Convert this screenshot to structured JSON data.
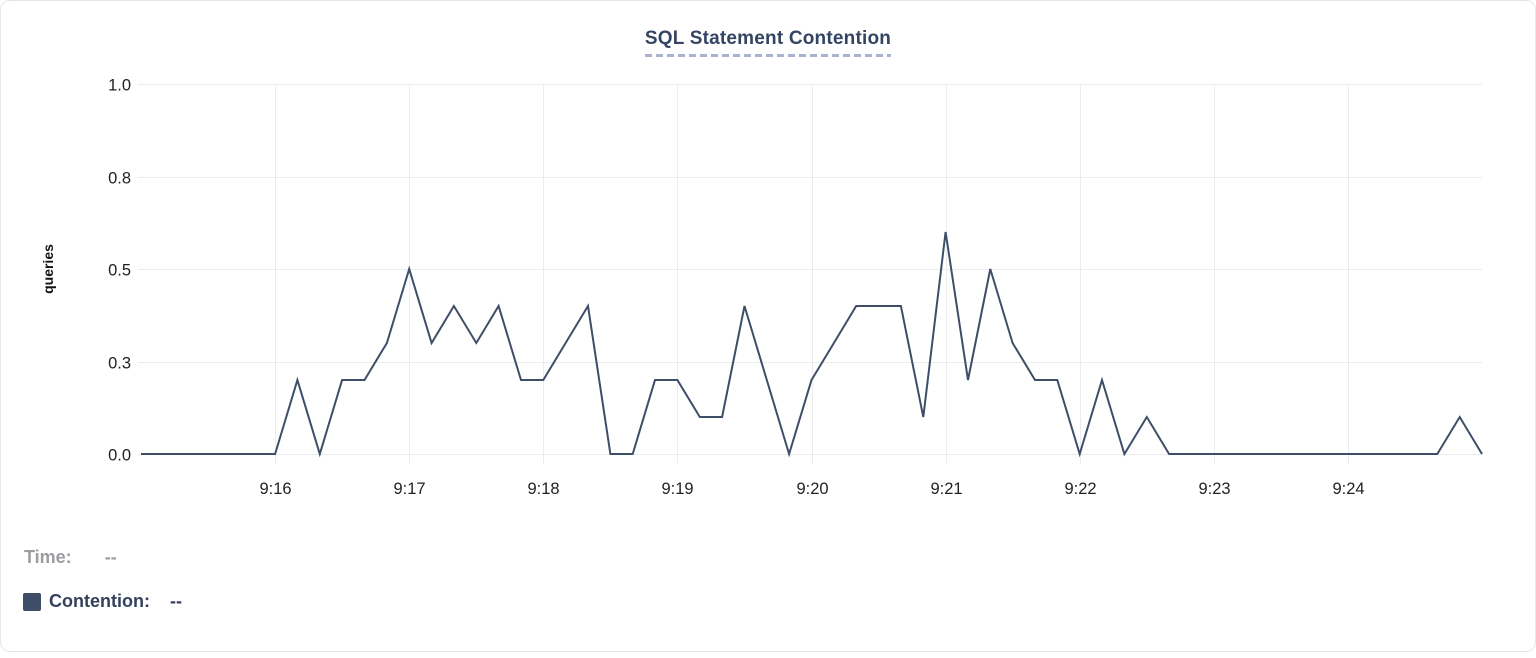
{
  "colors": {
    "line": "#3e4e68",
    "grid": "#ebecee",
    "tick_text": "#1e2023",
    "axis_label_text": "#111214",
    "title": "#344563",
    "title_underline": "#a9b2d1",
    "legend_gray": "#9b9da1",
    "legend_navy": "#33415c",
    "card_border": "#e4e6e9",
    "background": "#ffffff"
  },
  "legend": {
    "time_label": "Time:",
    "time_value": "--",
    "contention_label": "Contention:",
    "contention_value": "--",
    "swatch_color": "#3e4e68"
  },
  "chart_data": {
    "type": "line",
    "title": "SQL Statement Contention",
    "xlabel": "",
    "ylabel": "queries",
    "ylim": [
      0,
      1
    ],
    "grid": true,
    "legend_position": "bottom-left",
    "markers": false,
    "interval_seconds": 10,
    "x_range": [
      "9:15:00",
      "9:25:00"
    ],
    "y_ticks": [
      {
        "value": 0.0,
        "label": "0.0"
      },
      {
        "value": 0.25,
        "label": "0.3"
      },
      {
        "value": 0.5,
        "label": "0.5"
      },
      {
        "value": 0.75,
        "label": "0.8"
      },
      {
        "value": 1.0,
        "label": "1.0"
      }
    ],
    "x_tick_labels": [
      "9:16",
      "9:17",
      "9:18",
      "9:19",
      "9:20",
      "9:21",
      "9:22",
      "9:23",
      "9:24"
    ],
    "x": [
      "9:15:00",
      "9:15:10",
      "9:15:20",
      "9:15:30",
      "9:15:40",
      "9:15:50",
      "9:16:00",
      "9:16:10",
      "9:16:20",
      "9:16:30",
      "9:16:40",
      "9:16:50",
      "9:17:00",
      "9:17:10",
      "9:17:20",
      "9:17:30",
      "9:17:40",
      "9:17:50",
      "9:18:00",
      "9:18:10",
      "9:18:20",
      "9:18:30",
      "9:18:40",
      "9:18:50",
      "9:19:00",
      "9:19:10",
      "9:19:20",
      "9:19:30",
      "9:19:40",
      "9:19:50",
      "9:20:00",
      "9:20:10",
      "9:20:20",
      "9:20:30",
      "9:20:40",
      "9:20:50",
      "9:21:00",
      "9:21:10",
      "9:21:20",
      "9:21:30",
      "9:21:40",
      "9:21:50",
      "9:22:00",
      "9:22:10",
      "9:22:20",
      "9:22:30",
      "9:22:40",
      "9:22:50",
      "9:23:00",
      "9:23:10",
      "9:23:20",
      "9:23:30",
      "9:23:40",
      "9:23:50",
      "9:24:00",
      "9:24:10",
      "9:24:20",
      "9:24:30",
      "9:24:40",
      "9:24:50",
      "9:25:00"
    ],
    "series": [
      {
        "name": "Contention",
        "color": "#3e4e68",
        "values": [
          0,
          0,
          0,
          0,
          0,
          0,
          0,
          0.2,
          0,
          0.2,
          0.2,
          0.3,
          0.5,
          0.3,
          0.4,
          0.3,
          0.4,
          0.2,
          0.2,
          0.3,
          0.4,
          0,
          0,
          0.2,
          0.2,
          0.1,
          0.1,
          0.4,
          0.2,
          0,
          0.2,
          0.3,
          0.4,
          0.4,
          0.4,
          0.1,
          0.6,
          0.2,
          0.5,
          0.3,
          0.2,
          0.2,
          0,
          0.2,
          0,
          0.1,
          0,
          0,
          0,
          0,
          0,
          0,
          0,
          0,
          0,
          0,
          0,
          0,
          0,
          0.1,
          0
        ]
      }
    ]
  }
}
